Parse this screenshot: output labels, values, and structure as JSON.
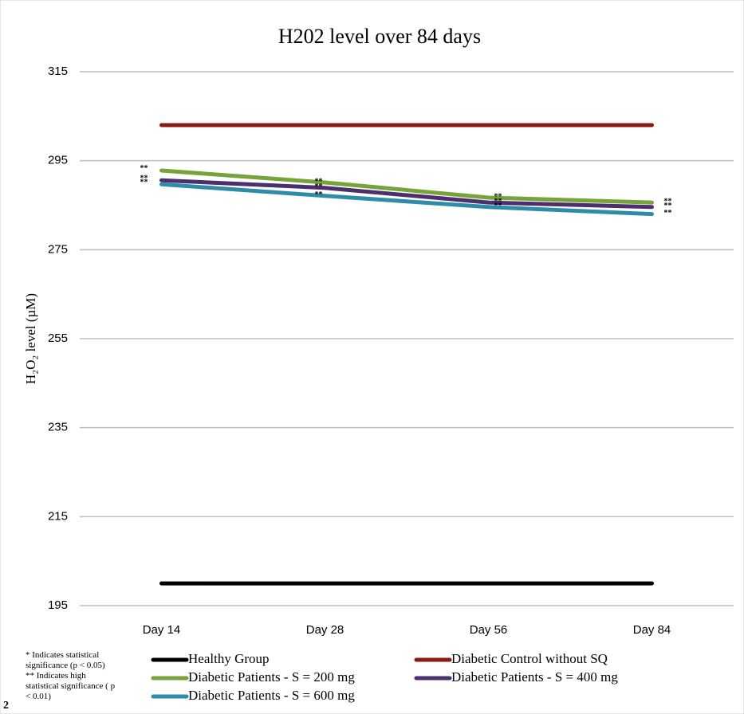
{
  "chart_data": {
    "type": "line",
    "title": "H202 level over 84 days",
    "y_label": "H₂O₂ level (µM)",
    "categories": [
      "Day 14",
      "Day 28",
      "Day 56",
      "Day 84"
    ],
    "ylim": [
      195,
      315
    ],
    "yticks": [
      195,
      215,
      235,
      255,
      275,
      295,
      315
    ],
    "grid": true,
    "legend_position": "bottom",
    "series": [
      {
        "name": "Healthy Group",
        "color": "#000000",
        "values": [
          200,
          200,
          200,
          200
        ]
      },
      {
        "name": "Diabetic Control without SQ",
        "color": "#8b1a13",
        "values": [
          303,
          303,
          303,
          303
        ]
      },
      {
        "name": "Diabetic Patients - S = 200 mg",
        "color": "#77a33a",
        "values": [
          292.8,
          290.1,
          286.7,
          285.6
        ],
        "significance": [
          "**",
          "**",
          "**",
          "**"
        ]
      },
      {
        "name": "Diabetic Patients - S = 400 mg",
        "color": "#4b2f6e",
        "values": [
          290.6,
          288.9,
          285.6,
          284.6
        ],
        "significance": [
          "**",
          "**",
          "**",
          "**"
        ]
      },
      {
        "name": "Diabetic Patients - S = 600 mg",
        "color": "#2f8ca8",
        "values": [
          289.7,
          287.1,
          284.6,
          283.0
        ],
        "significance": [
          "**",
          "**",
          "**",
          "**"
        ]
      }
    ],
    "footnotes": [
      "* Indicates statistical significance (p < 0.05)",
      "** Indicates high statistical significance ( p < 0.01)"
    ],
    "figure_label": "2"
  }
}
